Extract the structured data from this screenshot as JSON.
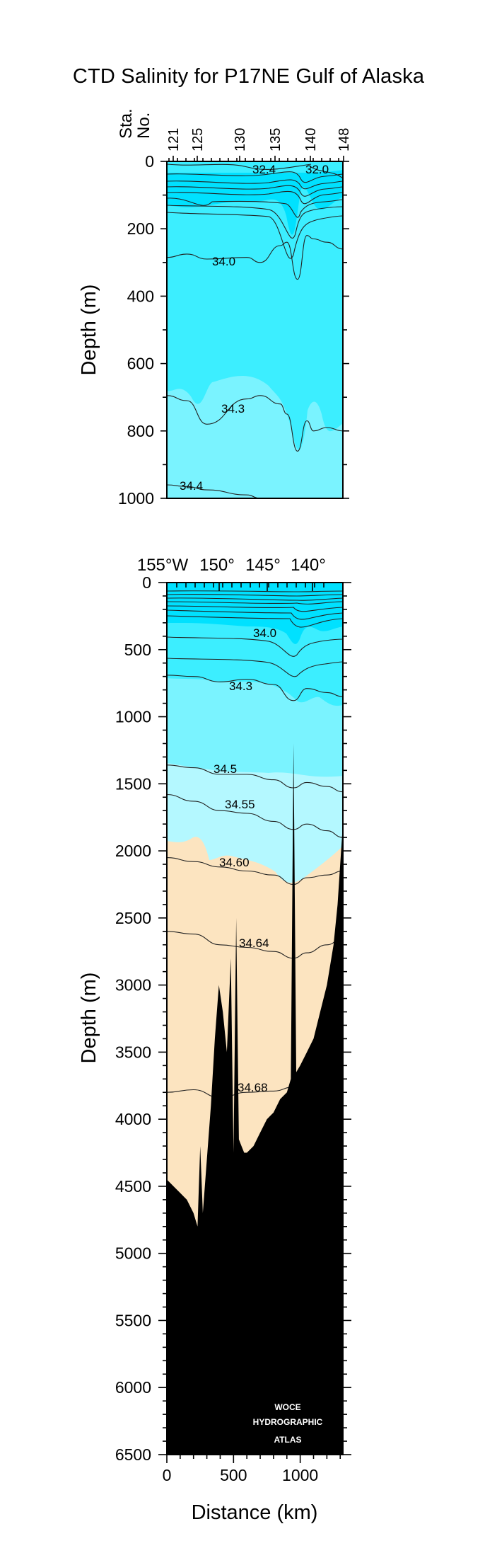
{
  "title": "CTD Salinity for P17NE Gulf of Alaska",
  "colors": {
    "band_dark": "#00e1ff",
    "band_mid": "#3ceeff",
    "band_light": "#7af3ff",
    "band_pale": "#b4f8ff",
    "deep_water": "#fce4c0",
    "bottom": "#000000",
    "contour": "#222222"
  },
  "top_panel": {
    "station_axis_label_1": "Sta.",
    "station_axis_label_2": "No.",
    "station_ticks": [
      "121",
      "125",
      "130",
      "135",
      "140",
      "148"
    ],
    "ylabel": "Depth (m)",
    "y_ticks": [
      "0",
      "200",
      "400",
      "600",
      "800",
      "1000"
    ],
    "contour_labels": [
      "32.4",
      "32.0",
      "34.0",
      "34.3",
      "34.4"
    ]
  },
  "bottom_panel": {
    "lon_ticks": [
      "155°W",
      "150°",
      "145°",
      "140°"
    ],
    "ylabel": "Depth (m)",
    "y_ticks": [
      "0",
      "500",
      "1000",
      "1500",
      "2000",
      "2500",
      "3000",
      "3500",
      "4000",
      "4500",
      "5000",
      "5500",
      "6000",
      "6500"
    ],
    "x_ticks": [
      "0",
      "500",
      "1000"
    ],
    "xlabel": "Distance (km)",
    "contour_labels": [
      "34.0",
      "34.3",
      "34.5",
      "34.55",
      "34.60",
      "34.64",
      "34.68"
    ],
    "watermark": [
      "WOCE",
      "HYDROGRAPHIC",
      "ATLAS"
    ]
  },
  "chart_data": [
    {
      "type": "heatmap",
      "title": "CTD Salinity for P17NE Gulf of Alaska",
      "xlabel": "Sta. No.",
      "ylabel": "Depth (m)",
      "x_range_km": [
        0,
        1320
      ],
      "ylim": [
        1000,
        0
      ],
      "station_ticks": [
        121,
        125,
        130,
        135,
        140,
        148
      ],
      "contour_levels": [
        32.0,
        32.4,
        34.0,
        34.3,
        34.4
      ],
      "contours": [
        {
          "level": 34.0,
          "x": [
            0,
            150,
            300,
            600,
            700,
            850,
            900,
            980,
            1050,
            1100,
            1200,
            1320
          ],
          "y": [
            285,
            275,
            290,
            285,
            300,
            250,
            240,
            350,
            220,
            230,
            240,
            260
          ]
        },
        {
          "level": 34.3,
          "x": [
            0,
            150,
            300,
            600,
            700,
            850,
            900,
            980,
            1050,
            1100,
            1200,
            1320
          ],
          "y": [
            695,
            710,
            780,
            705,
            695,
            720,
            750,
            860,
            770,
            800,
            790,
            800
          ]
        },
        {
          "level": 34.4,
          "x": [
            0,
            150,
            300,
            600,
            700,
            850,
            900,
            980,
            1050,
            1100,
            1200,
            1320
          ],
          "y": [
            960,
            965,
            975,
            990,
            1000,
            1000,
            1000,
            1000,
            1000,
            1000,
            1000,
            1000
          ]
        }
      ]
    },
    {
      "type": "heatmap",
      "xlabel": "Distance (km)",
      "ylabel": "Depth (m)",
      "xlim": [
        0,
        1320
      ],
      "ylim": [
        6500,
        0
      ],
      "lon_ticks": [
        "155°W",
        "150°",
        "145°",
        "140°"
      ],
      "contour_levels": [
        34.0,
        34.3,
        34.5,
        34.55,
        34.6,
        34.64,
        34.68
      ],
      "contours": [
        {
          "level": 34.3,
          "x": [
            0,
            200,
            400,
            600,
            800,
            950,
            1050,
            1200,
            1320
          ],
          "y": [
            690,
            700,
            740,
            720,
            760,
            880,
            790,
            820,
            850
          ]
        },
        {
          "level": 34.5,
          "x": [
            0,
            200,
            400,
            600,
            800,
            950,
            1050,
            1200,
            1320
          ],
          "y": [
            1360,
            1380,
            1430,
            1430,
            1470,
            1530,
            1490,
            1520,
            1560
          ]
        },
        {
          "level": 34.55,
          "x": [
            0,
            200,
            400,
            600,
            800,
            950,
            1050,
            1200,
            1320
          ],
          "y": [
            1580,
            1630,
            1700,
            1720,
            1780,
            1840,
            1800,
            1850,
            1900
          ]
        },
        {
          "level": 34.6,
          "x": [
            0,
            200,
            400,
            600,
            800,
            950,
            1050,
            1200,
            1320
          ],
          "y": [
            2050,
            2080,
            2120,
            2150,
            2180,
            2250,
            2200,
            2180,
            2150
          ]
        },
        {
          "level": 34.64,
          "x": [
            0,
            200,
            400,
            600,
            800,
            950,
            1050,
            1200,
            1320
          ],
          "y": [
            2600,
            2620,
            2700,
            2720,
            2750,
            2800,
            2760,
            2700,
            2650
          ]
        },
        {
          "level": 34.68,
          "x": [
            0,
            200,
            400,
            600,
            800,
            950,
            1050,
            1200,
            1320
          ],
          "y": [
            3800,
            3780,
            3840,
            3800,
            3790,
            3760,
            3700,
            3600,
            3500
          ]
        }
      ],
      "bottom_depth": {
        "x": [
          0,
          50,
          100,
          150,
          200,
          230,
          250,
          270,
          300,
          330,
          360,
          390,
          420,
          450,
          480,
          500,
          520,
          540,
          560,
          580,
          600,
          650,
          700,
          750,
          800,
          850,
          900,
          930,
          950,
          970,
          1000,
          1050,
          1100,
          1150,
          1200,
          1250,
          1280,
          1300,
          1320
        ],
        "y": [
          4450,
          4500,
          4550,
          4600,
          4700,
          4800,
          4200,
          4700,
          4300,
          3900,
          3400,
          3000,
          3200,
          3500,
          2800,
          4250,
          2500,
          4150,
          4200,
          4250,
          4250,
          4200,
          4100,
          4000,
          3950,
          3850,
          3800,
          3700,
          1200,
          3650,
          3600,
          3500,
          3400,
          3200,
          3000,
          2700,
          2400,
          2100,
          1800
        ]
      }
    }
  ]
}
